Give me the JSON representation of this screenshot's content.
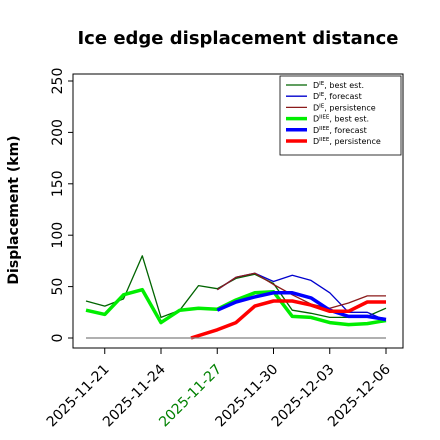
{
  "chart_data": {
    "type": "line",
    "title": "Ice edge displacement distance",
    "ylabel": "Displacement (km)",
    "xlabel": "",
    "ylim": [
      0,
      260
    ],
    "yticks": [
      0,
      50,
      100,
      150,
      200,
      250
    ],
    "grid": false,
    "legend_position": "top-right",
    "x_tick_labels": [
      {
        "label": "2025-11-21",
        "day": 1,
        "color": "#000000"
      },
      {
        "label": "2025-11-24",
        "day": 4,
        "color": "#000000"
      },
      {
        "label": "2025-11-27",
        "day": 7,
        "color": "#008000"
      },
      {
        "label": "2025-11-30",
        "day": 10,
        "color": "#000000"
      },
      {
        "label": "2025-12-03",
        "day": 13,
        "color": "#000000"
      },
      {
        "label": "2025-12-06",
        "day": 16,
        "color": "#000000"
      }
    ],
    "series": [
      {
        "name": "D^IE, best est.",
        "color": "#006400",
        "width": 1.3,
        "x": [
          0,
          1,
          2,
          3,
          4,
          5,
          6,
          7,
          8,
          9,
          10,
          11,
          12,
          13,
          14,
          15,
          16
        ],
        "y": [
          36,
          31,
          38,
          80,
          20,
          27,
          51,
          48,
          58,
          62,
          53,
          27,
          24,
          20,
          20,
          21,
          29
        ]
      },
      {
        "name": "D^IE, forecast",
        "color": "#0000cd",
        "width": 1.3,
        "x": [
          7,
          8,
          9,
          10,
          11,
          12,
          13,
          14,
          15,
          16
        ],
        "y": [
          47,
          59,
          63,
          55,
          61,
          56,
          44,
          25,
          25,
          17
        ]
      },
      {
        "name": "D^IE, persistence",
        "color": "#8b1a1a",
        "width": 1.3,
        "x": [
          7,
          8,
          9,
          10,
          11,
          12,
          13,
          14,
          15,
          16
        ],
        "y": [
          47,
          59,
          63,
          52,
          42,
          33,
          29,
          34,
          41,
          41
        ]
      },
      {
        "name": "D^IIEE, best est.",
        "color": "#00ee00",
        "width": 3.5,
        "x": [
          0,
          1,
          2,
          3,
          4,
          5,
          6,
          7,
          8,
          9,
          10,
          11,
          12,
          13,
          14,
          15,
          16
        ],
        "y": [
          27,
          23,
          42,
          47,
          15,
          27,
          29,
          28,
          37,
          44,
          45,
          21,
          20,
          15,
          13,
          14,
          17
        ]
      },
      {
        "name": "D^IIEE, forecast",
        "color": "#0000ff",
        "width": 3.5,
        "x": [
          7,
          8,
          9,
          10,
          11,
          12,
          13,
          14,
          15,
          16
        ],
        "y": [
          27,
          35,
          40,
          44,
          44,
          39,
          27,
          21,
          21,
          18
        ]
      },
      {
        "name": "D^IIEE, persistence",
        "color": "#ff0000",
        "width": 3.5,
        "x": [
          5.6,
          7,
          8,
          9,
          10,
          11,
          12,
          13,
          14,
          15,
          16
        ],
        "y": [
          0,
          8,
          15,
          31,
          36,
          36,
          32,
          26,
          26,
          35,
          35
        ]
      },
      {
        "name": "",
        "color": "#808080",
        "width": 1.3,
        "x": [
          0,
          16
        ],
        "y": [
          0,
          0
        ]
      }
    ],
    "legend": [
      {
        "label_base": "D",
        "label_sup": "IE",
        "label_rest": ", best est.",
        "color": "#006400",
        "thick": false
      },
      {
        "label_base": "D",
        "label_sup": "IE",
        "label_rest": ", forecast",
        "color": "#0000cd",
        "thick": false
      },
      {
        "label_base": "D",
        "label_sup": "IE",
        "label_rest": ", persistence",
        "color": "#8b1a1a",
        "thick": false
      },
      {
        "label_base": "D",
        "label_sup": "IIEE",
        "label_rest": ", best est.",
        "color": "#00ee00",
        "thick": true
      },
      {
        "label_base": "D",
        "label_sup": "IIEE",
        "label_rest": ", forecast",
        "color": "#0000ff",
        "thick": true
      },
      {
        "label_base": "D",
        "label_sup": "IIEE",
        "label_rest": ", persistence",
        "color": "#ff0000",
        "thick": true
      }
    ]
  }
}
